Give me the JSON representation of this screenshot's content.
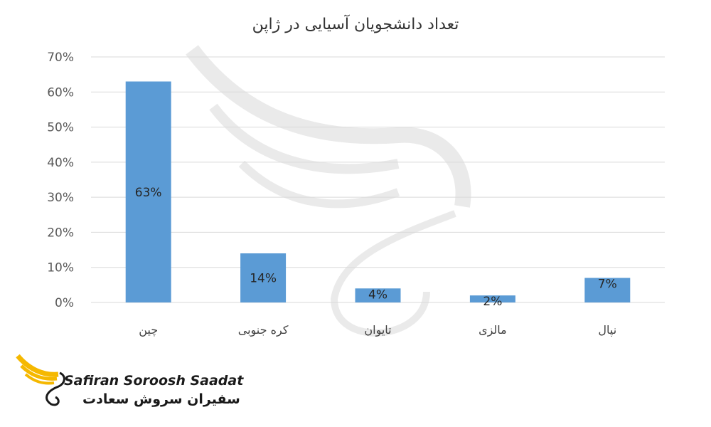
{
  "chart_data": {
    "type": "bar",
    "title": "تعداد دانشجویان آسیایی در ژاپن",
    "categories": [
      "چین",
      "کره جنوبی",
      "تایوان",
      "مالزی",
      "نپال"
    ],
    "values": [
      63,
      14,
      4,
      2,
      7
    ],
    "data_labels": [
      "63%",
      "14%",
      "4%",
      "2%",
      "7%"
    ],
    "y_ticks": [
      "0%",
      "10%",
      "20%",
      "30%",
      "40%",
      "50%",
      "60%",
      "70%"
    ],
    "ylim": [
      0,
      70
    ],
    "grid": true,
    "bar_color": "#5b9bd5"
  },
  "logo": {
    "name_en": "Safiran Soroosh Saadat",
    "name_fa": "سفیران سروش سعادت",
    "accent_color": "#f5b800"
  }
}
